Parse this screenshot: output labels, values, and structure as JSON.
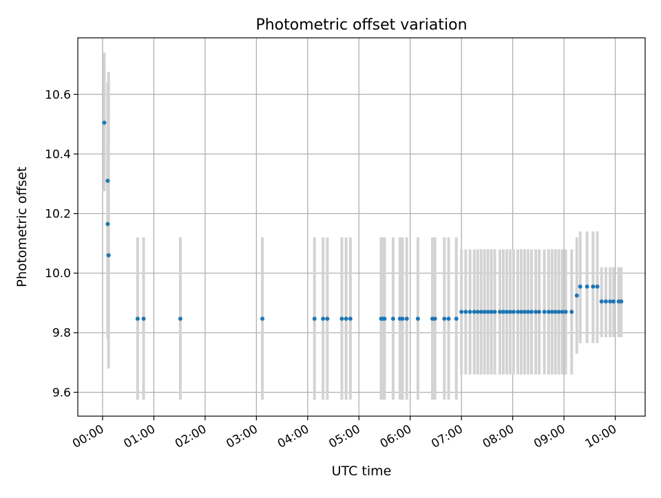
{
  "chart_data": {
    "type": "scatter",
    "title": "Photometric offset variation",
    "xlabel": "UTC time",
    "ylabel": "Photometric offset",
    "x_tick_labels": [
      "00:00",
      "01:00",
      "02:00",
      "03:00",
      "04:00",
      "05:00",
      "06:00",
      "07:00",
      "08:00",
      "09:00",
      "10:00"
    ],
    "y_tick_labels": [
      "9.6",
      "9.8",
      "10.0",
      "10.2",
      "10.4",
      "10.6"
    ],
    "xlim": [
      "-00:29",
      "10:35"
    ],
    "ylim": [
      9.52,
      10.79
    ],
    "grid": true,
    "x": [
      "00:02",
      "00:06",
      "00:06",
      "00:07",
      "00:41",
      "00:48",
      "01:31",
      "03:07",
      "04:08",
      "04:18",
      "04:23",
      "04:40",
      "04:45",
      "04:50",
      "05:26",
      "05:28",
      "05:30",
      "05:40",
      "05:48",
      "05:51",
      "05:56",
      "06:09",
      "06:26",
      "06:29",
      "06:40",
      "06:45",
      "06:54",
      "07:00",
      "07:05",
      "07:10",
      "07:15",
      "07:19",
      "07:23",
      "07:27",
      "07:31",
      "07:35",
      "07:39",
      "07:45",
      "07:49",
      "07:53",
      "07:57",
      "08:01",
      "08:06",
      "08:10",
      "08:14",
      "08:18",
      "08:22",
      "08:27",
      "08:31",
      "08:37",
      "08:42",
      "08:46",
      "08:50",
      "08:54",
      "08:58",
      "09:02",
      "09:09",
      "09:15",
      "09:19",
      "09:27",
      "09:34",
      "09:39",
      "09:44",
      "09:49",
      "09:54",
      "09:58",
      "10:04",
      "10:07"
    ],
    "values": [
      10.505,
      10.31,
      10.165,
      10.06,
      9.847,
      9.847,
      9.847,
      9.847,
      9.847,
      9.847,
      9.847,
      9.847,
      9.847,
      9.847,
      9.847,
      9.847,
      9.847,
      9.847,
      9.847,
      9.847,
      9.847,
      9.847,
      9.847,
      9.847,
      9.847,
      9.847,
      9.847,
      9.87,
      9.87,
      9.87,
      9.87,
      9.87,
      9.87,
      9.87,
      9.87,
      9.87,
      9.87,
      9.87,
      9.87,
      9.87,
      9.87,
      9.87,
      9.87,
      9.87,
      9.87,
      9.87,
      9.87,
      9.87,
      9.87,
      9.87,
      9.87,
      9.87,
      9.87,
      9.87,
      9.87,
      9.87,
      9.87,
      9.925,
      9.955,
      9.955,
      9.955,
      9.955,
      9.905,
      9.905,
      9.905,
      9.905,
      9.905,
      9.905
    ],
    "err_low": [
      10.275,
      9.78,
      9.84,
      9.68,
      9.575,
      9.575,
      9.575,
      9.575,
      9.575,
      9.575,
      9.575,
      9.575,
      9.575,
      9.575,
      9.575,
      9.575,
      9.575,
      9.575,
      9.575,
      9.575,
      9.575,
      9.575,
      9.575,
      9.575,
      9.575,
      9.575,
      9.575,
      9.66,
      9.66,
      9.66,
      9.66,
      9.66,
      9.66,
      9.66,
      9.66,
      9.66,
      9.66,
      9.66,
      9.66,
      9.66,
      9.66,
      9.66,
      9.66,
      9.66,
      9.66,
      9.66,
      9.66,
      9.66,
      9.66,
      9.66,
      9.66,
      9.66,
      9.66,
      9.66,
      9.66,
      9.66,
      9.66,
      9.73,
      9.765,
      9.765,
      9.765,
      9.765,
      9.785,
      9.785,
      9.785,
      9.785,
      9.785,
      9.785
    ],
    "err_high": [
      10.74,
      10.64,
      10.44,
      10.675,
      10.12,
      10.12,
      10.12,
      10.12,
      10.12,
      10.12,
      10.12,
      10.12,
      10.12,
      10.12,
      10.12,
      10.12,
      10.12,
      10.12,
      10.12,
      10.12,
      10.12,
      10.12,
      10.12,
      10.12,
      10.12,
      10.12,
      10.12,
      10.08,
      10.08,
      10.08,
      10.08,
      10.08,
      10.08,
      10.08,
      10.08,
      10.08,
      10.08,
      10.08,
      10.08,
      10.08,
      10.08,
      10.08,
      10.08,
      10.08,
      10.08,
      10.08,
      10.08,
      10.08,
      10.08,
      10.08,
      10.08,
      10.08,
      10.08,
      10.08,
      10.08,
      10.08,
      10.08,
      10.12,
      10.14,
      10.14,
      10.14,
      10.14,
      10.02,
      10.02,
      10.02,
      10.02,
      10.02,
      10.02
    ],
    "colors": {
      "point": "#1f77b4",
      "errorbar": "#d3d3d3",
      "grid": "#b0b0b0",
      "axes": "#000000"
    }
  }
}
